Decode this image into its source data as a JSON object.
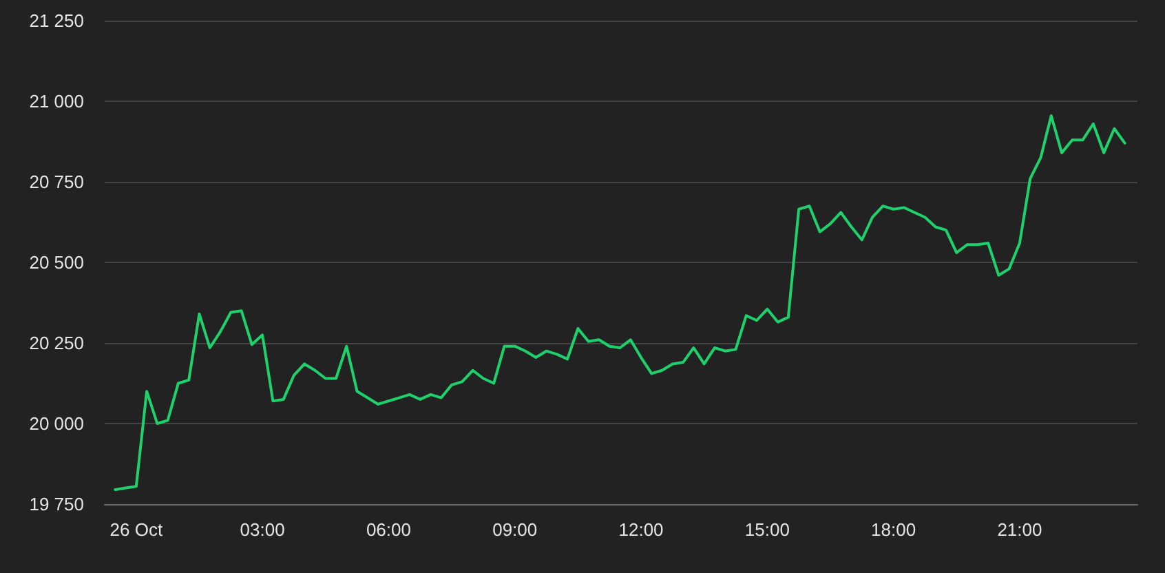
{
  "chart_data": {
    "type": "line",
    "color": "#1fd16c",
    "line_style": "solid",
    "grid": "y",
    "x": [
      -0.5,
      -0.25,
      0,
      0.25,
      0.5,
      0.75,
      1,
      1.25,
      1.5,
      1.75,
      2,
      2.25,
      2.5,
      2.75,
      3,
      3.25,
      3.5,
      3.75,
      4,
      4.25,
      4.5,
      4.75,
      5,
      5.25,
      5.5,
      5.75,
      6,
      6.25,
      6.5,
      6.75,
      7,
      7.25,
      7.5,
      7.75,
      8,
      8.25,
      8.5,
      8.75,
      9,
      9.25,
      9.5,
      9.75,
      10,
      10.25,
      10.5,
      10.75,
      11,
      11.25,
      11.5,
      11.75,
      12,
      12.25,
      12.5,
      12.75,
      13,
      13.25,
      13.5,
      13.75,
      14,
      14.25,
      14.5,
      14.75,
      15,
      15.25,
      15.5,
      15.75,
      16,
      16.25,
      16.5,
      16.75,
      17,
      17.25,
      17.5,
      17.75,
      18,
      18.25,
      18.5,
      18.75,
      19,
      19.25,
      19.5,
      19.75,
      20,
      20.25,
      20.5,
      20.75,
      21,
      21.25,
      21.5,
      21.75,
      22,
      22.25,
      22.5,
      22.75,
      23,
      23.25,
      23.5
    ],
    "values": [
      19795,
      19800,
      19805,
      20100,
      20000,
      20010,
      20125,
      20135,
      20340,
      20235,
      20285,
      20345,
      20350,
      20245,
      20275,
      20070,
      20075,
      20150,
      20185,
      20165,
      20140,
      20140,
      20240,
      20100,
      20080,
      20060,
      20070,
      20080,
      20090,
      20075,
      20090,
      20080,
      20120,
      20130,
      20165,
      20140,
      20125,
      20240,
      20240,
      20225,
      20205,
      20225,
      20215,
      20200,
      20295,
      20255,
      20260,
      20240,
      20235,
      20260,
      20205,
      20155,
      20165,
      20185,
      20190,
      20235,
      20185,
      20235,
      20225,
      20230,
      20335,
      20320,
      20355,
      20315,
      20330,
      20665,
      20675,
      20595,
      20620,
      20655,
      20610,
      20570,
      20640,
      20675,
      20665,
      20670,
      20655,
      20640,
      20610,
      20600,
      20530,
      20555,
      20555,
      20560,
      20460,
      20480,
      20560,
      20760,
      20825,
      20955,
      20840,
      20880,
      20880,
      20930,
      20840,
      20915,
      20870
    ],
    "xlim": [
      -0.75,
      23.8
    ],
    "xticks": [
      {
        "value": 0,
        "label": "26 Oct"
      },
      {
        "value": 3,
        "label": "03:00"
      },
      {
        "value": 6,
        "label": "06:00"
      },
      {
        "value": 9,
        "label": "09:00"
      },
      {
        "value": 12,
        "label": "12:00"
      },
      {
        "value": 15,
        "label": "15:00"
      },
      {
        "value": 18,
        "label": "18:00"
      },
      {
        "value": 21,
        "label": "21:00"
      }
    ],
    "ylim": [
      19750,
      21250
    ],
    "yticks": [
      {
        "value": 19750,
        "label": "19 750"
      },
      {
        "value": 20000,
        "label": "20 000"
      },
      {
        "value": 20250,
        "label": "20 250"
      },
      {
        "value": 20500,
        "label": "20 500"
      },
      {
        "value": 20750,
        "label": "20 750"
      },
      {
        "value": 21000,
        "label": "21 000"
      },
      {
        "value": 21250,
        "label": "21 250"
      }
    ]
  }
}
